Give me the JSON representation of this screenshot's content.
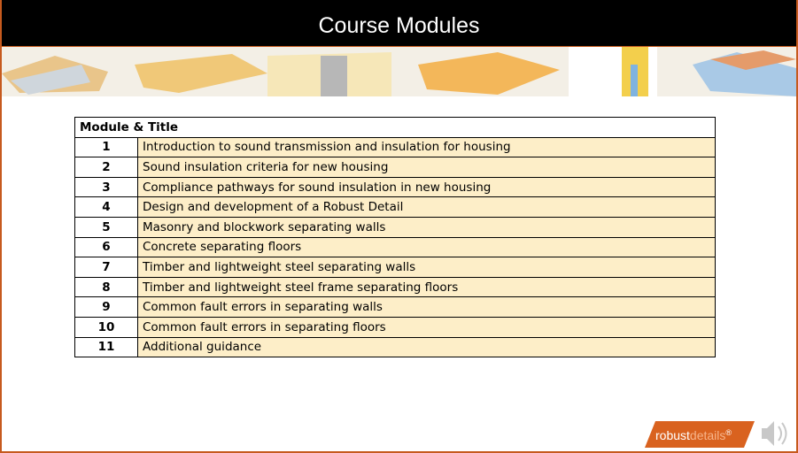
{
  "header": {
    "title": "Course Modules"
  },
  "table": {
    "header": "Module & Title",
    "rows": [
      [
        1,
        "Introduction to sound transmission and insulation for housing"
      ],
      [
        2,
        "Sound insulation criteria for new housing"
      ],
      [
        3,
        "Compliance pathways for sound insulation in new housing"
      ],
      [
        4,
        "Design and development of a Robust Detail"
      ],
      [
        5,
        "Masonry and blockwork separating walls"
      ],
      [
        6,
        "Concrete separating floors"
      ],
      [
        7,
        "Timber and lightweight steel separating walls"
      ],
      [
        8,
        "Timber and lightweight steel frame separating floors"
      ],
      [
        9,
        "Common fault errors in separating walls"
      ],
      [
        10,
        "Common fault errors in separating floors"
      ],
      [
        11,
        "Additional guidance"
      ]
    ]
  },
  "logo": {
    "part1": "robust",
    "part2": "details",
    "mark": "®"
  }
}
